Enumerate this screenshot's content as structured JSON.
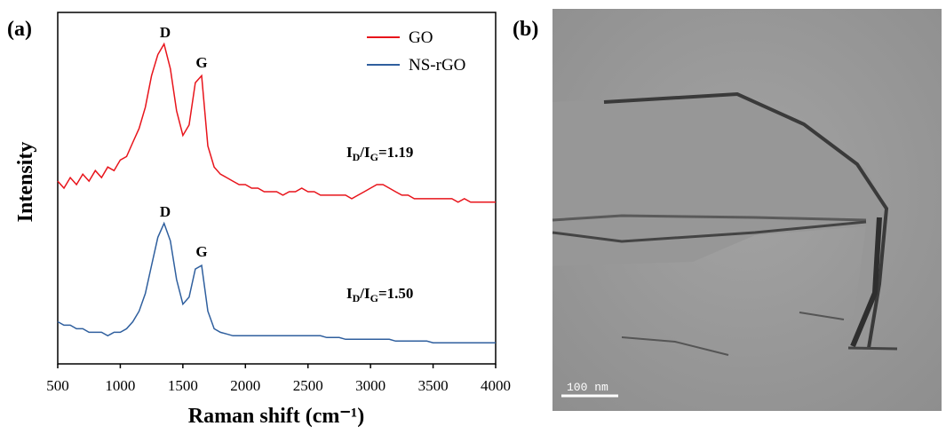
{
  "panel_labels": [
    "(a)",
    "(b)"
  ],
  "chart_data": {
    "type": "line",
    "xlabel": "Raman shift (cm⁻¹)",
    "ylabel": "Intensity",
    "x": [
      500,
      550,
      600,
      650,
      700,
      750,
      800,
      850,
      900,
      950,
      1000,
      1050,
      1100,
      1150,
      1200,
      1250,
      1300,
      1350,
      1400,
      1450,
      1500,
      1550,
      1600,
      1650,
      1700,
      1750,
      1800,
      1850,
      1900,
      1950,
      2000,
      2050,
      2100,
      2150,
      2200,
      2250,
      2300,
      2350,
      2400,
      2450,
      2500,
      2550,
      2600,
      2650,
      2700,
      2750,
      2800,
      2850,
      2900,
      2950,
      3000,
      3050,
      3100,
      3150,
      3200,
      3250,
      3300,
      3350,
      3400,
      3450,
      3500,
      3550,
      3600,
      3650,
      3700,
      3750,
      3800,
      3850,
      3900,
      3950,
      4000
    ],
    "series": [
      {
        "name": "GO",
        "color": "#e8141b",
        "values": [
          52,
          50,
          53,
          51,
          54,
          52,
          55,
          53,
          56,
          55,
          58,
          59,
          63,
          67,
          73,
          82,
          88,
          91,
          84,
          72,
          65,
          68,
          80,
          82,
          62,
          56,
          54,
          53,
          52,
          51,
          51,
          50,
          50,
          49,
          49,
          49,
          48,
          49,
          49,
          50,
          49,
          49,
          48,
          48,
          48,
          48,
          48,
          47,
          48,
          49,
          50,
          51,
          51,
          50,
          49,
          48,
          48,
          47,
          47,
          47,
          47,
          47,
          47,
          47,
          46,
          47,
          46,
          46,
          46,
          46,
          46
        ]
      },
      {
        "name": "NS-rGO",
        "color": "#2f5f9e",
        "values": [
          12,
          11,
          11,
          10,
          10,
          9,
          9,
          9,
          8,
          9,
          9,
          10,
          12,
          15,
          20,
          28,
          36,
          40,
          35,
          24,
          17,
          19,
          27,
          28,
          15,
          10,
          9,
          8.5,
          8,
          8,
          8,
          8,
          8,
          8,
          8,
          8,
          8,
          8,
          8,
          8,
          8,
          8,
          8,
          7.5,
          7.5,
          7.5,
          7,
          7,
          7,
          7,
          7,
          7,
          7,
          7,
          6.5,
          6.5,
          6.5,
          6.5,
          6.5,
          6.5,
          6,
          6,
          6,
          6,
          6,
          6,
          6,
          6,
          6,
          6,
          6
        ]
      }
    ],
    "annotations": [
      "D",
      "G",
      "D",
      "G"
    ],
    "ratio_labels": [
      [
        "I",
        "D",
        "/I",
        "G",
        "=1.19"
      ],
      [
        "I",
        "D",
        "/I",
        "G",
        "=1.50"
      ]
    ],
    "xlim": [
      500,
      4000
    ],
    "xticks": [
      500,
      1000,
      1500,
      2000,
      2500,
      3000,
      3500,
      4000
    ],
    "ylim": [
      0,
      100
    ],
    "legend": "upper right",
    "grid": false
  },
  "image": {
    "scale_bar": "100 nm"
  }
}
